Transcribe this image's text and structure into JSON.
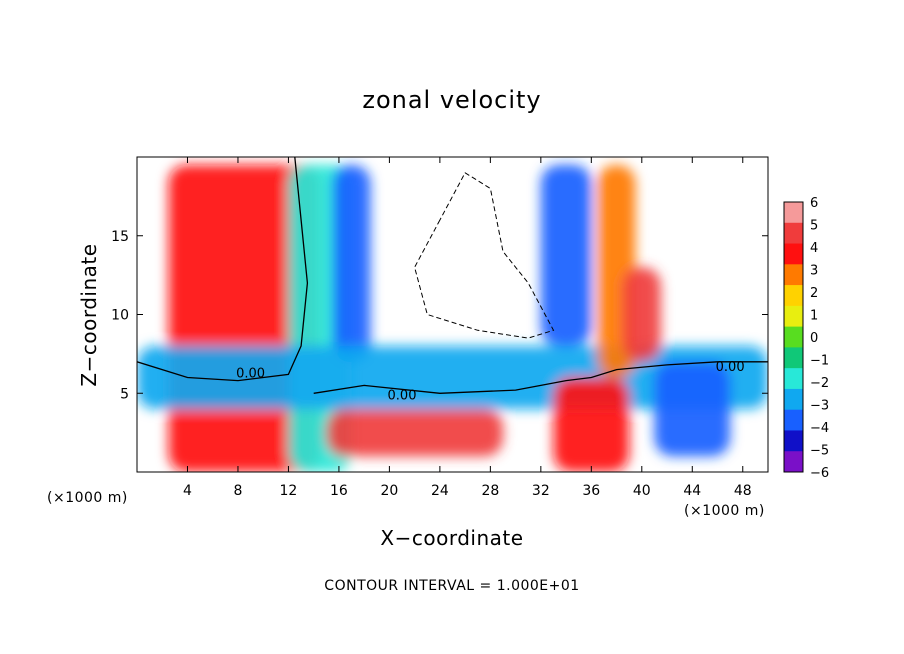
{
  "chart_data": {
    "type": "heatmap",
    "title": "zonal velocity",
    "xlabel": "X−coordinate",
    "ylabel": "Z−coordinate",
    "x_unit": "(×1000 m)",
    "footnote": "CONTOUR INTERVAL = 1.000E+01",
    "xlim": [
      0,
      50
    ],
    "ylim": [
      0,
      20
    ],
    "x_ticks": [
      4,
      8,
      12,
      16,
      20,
      24,
      28,
      32,
      36,
      40,
      44,
      48
    ],
    "y_ticks": [
      5,
      10,
      15
    ],
    "colorbar": {
      "levels": [
        "6",
        "5",
        "4",
        "3",
        "2",
        "1",
        "0",
        "−1",
        "−2",
        "−3",
        "−4",
        "−5",
        "−6"
      ],
      "colors": [
        "#f59a9a",
        "#f03c3c",
        "#ff1010",
        "#ff7a00",
        "#ffd200",
        "#e8ee10",
        "#58dd20",
        "#10c878",
        "#28e8d8",
        "#10a8f0",
        "#1860ff",
        "#1010c8",
        "#7a10c8"
      ]
    },
    "contour_labels": [
      "0.00",
      "0.00",
      "0.00"
    ],
    "bands": [
      {
        "x_center": 8.5,
        "x_width": 12,
        "z_from": 0,
        "z_to": 19.5,
        "level": 4
      },
      {
        "x_center": 14.5,
        "x_width": 5,
        "z_from": 0,
        "z_to": 19.5,
        "level": -2
      },
      {
        "x_center": 17,
        "x_width": 3,
        "z_from": 7,
        "z_to": 19.5,
        "level": -4
      },
      {
        "x_center": 25,
        "x_width": 50,
        "z_from": 4,
        "z_to": 8,
        "level": -3
      },
      {
        "x_center": 34,
        "x_width": 4,
        "z_from": 8,
        "z_to": 19.5,
        "level": -4
      },
      {
        "x_center": 38,
        "x_width": 3,
        "z_from": 6,
        "z_to": 19.5,
        "level": 3
      },
      {
        "x_center": 40,
        "x_width": 3,
        "z_from": 7,
        "z_to": 13,
        "level": 5
      },
      {
        "x_center": 36,
        "x_width": 6,
        "z_from": 0,
        "z_to": 6,
        "level": 4
      },
      {
        "x_center": 22,
        "x_width": 14,
        "z_from": 1,
        "z_to": 4,
        "level": 5
      },
      {
        "x_center": 44,
        "x_width": 6,
        "z_from": 1,
        "z_to": 7,
        "level": -4
      }
    ]
  }
}
